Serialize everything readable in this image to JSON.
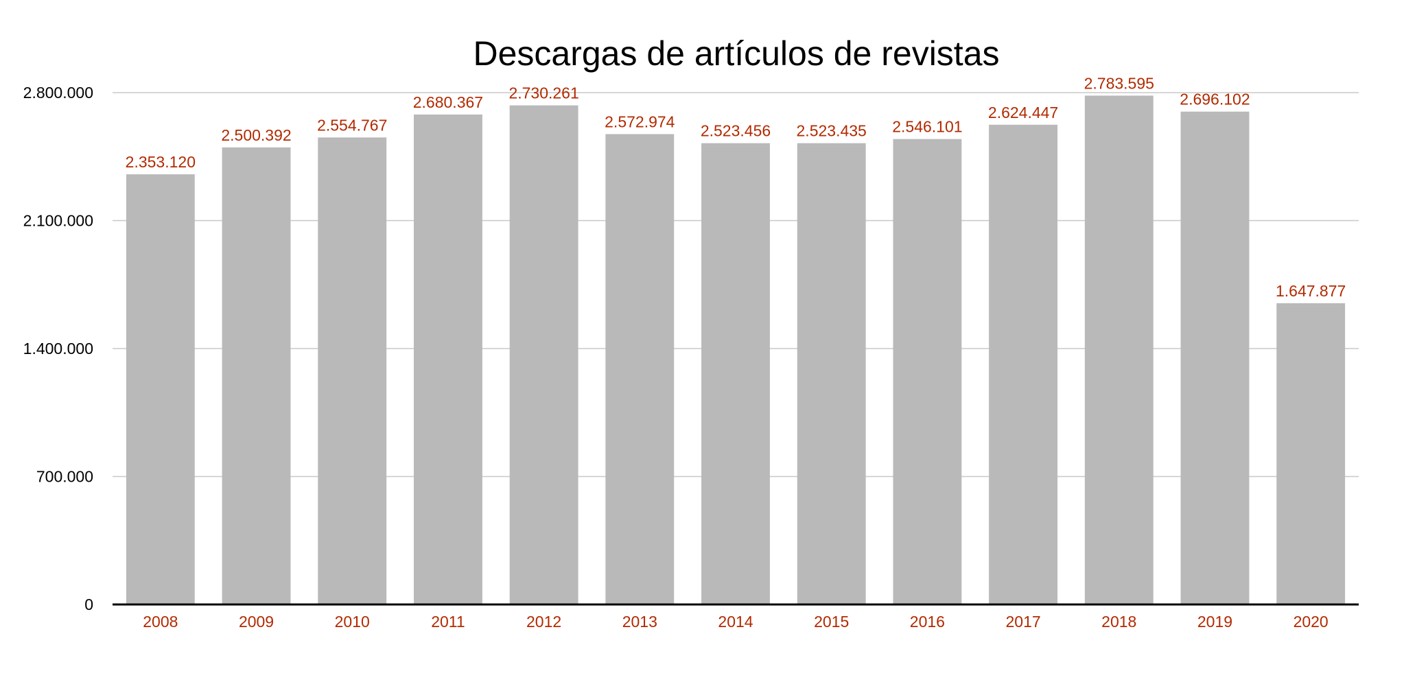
{
  "chart_data": {
    "type": "bar",
    "title": "Descargas de artículos de revistas",
    "categories": [
      "2008",
      "2009",
      "2010",
      "2011",
      "2012",
      "2013",
      "2014",
      "2015",
      "2016",
      "2017",
      "2018",
      "2019",
      "2020"
    ],
    "values": [
      2353120,
      2500392,
      2554767,
      2680367,
      2730261,
      2572974,
      2523456,
      2523435,
      2546101,
      2624447,
      2783595,
      2696102,
      1647877
    ],
    "data_labels": [
      "2.353.120",
      "2.500.392",
      "2.554.767",
      "2.680.367",
      "2.730.261",
      "2.572.974",
      "2.523.456",
      "2.523.435",
      "2.546.101",
      "2.624.447",
      "2.783.595",
      "2.696.102",
      "1.647.877"
    ],
    "ylim": [
      0,
      2800000
    ],
    "yticks": [
      0,
      700000,
      1400000,
      2100000,
      2800000
    ],
    "ytick_labels": [
      "0",
      "700.000",
      "1.400.000",
      "2.100.000",
      "2.800.000"
    ],
    "grid": true,
    "xlabel": "",
    "ylabel": "",
    "colors": {
      "bar": "#b9b9b9",
      "label": "#b22a00",
      "grid": "#c8c8c8",
      "axis": "#000000"
    }
  }
}
